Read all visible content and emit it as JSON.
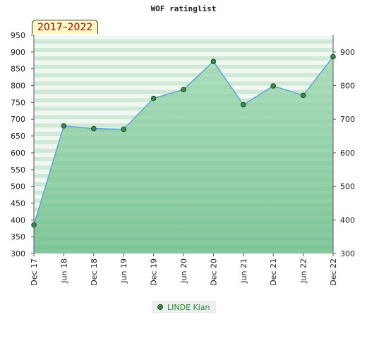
{
  "title": "WOF ratinglist",
  "period_badge": "2017–2022",
  "legend": {
    "label": "LINDE Kian"
  },
  "colors": {
    "line": "#5a9ed6",
    "marker_fill": "#3d8a4d",
    "fill_top": "#a8dcb8",
    "fill_bottom": "#7cc496",
    "band_light": "#f1f8f2",
    "band_mid": "#cfe9d6",
    "badge_bg": "#fff8c4",
    "badge_text": "#b00000"
  },
  "chart_data": {
    "type": "area",
    "title": "WOF ratinglist",
    "xlabel": "",
    "ylabel": "",
    "categories": [
      "Dec 17",
      "Jun 18",
      "Dec 18",
      "Jun 19",
      "Dec 19",
      "Jun 20",
      "Dec 20",
      "Jun 21",
      "Dec 21",
      "Jun 22",
      "Dec 22"
    ],
    "ylim": [
      300,
      950
    ],
    "left_ticks": [
      300,
      350,
      400,
      450,
      500,
      550,
      600,
      650,
      700,
      750,
      800,
      850,
      900,
      950
    ],
    "right_ticks": [
      300,
      400,
      500,
      600,
      700,
      800,
      900
    ],
    "legend_position": "bottom-center",
    "series": [
      {
        "name": "LINDE Kian",
        "values": [
          385,
          680,
          672,
          670,
          762,
          788,
          872,
          743,
          799,
          771,
          886
        ]
      }
    ]
  }
}
